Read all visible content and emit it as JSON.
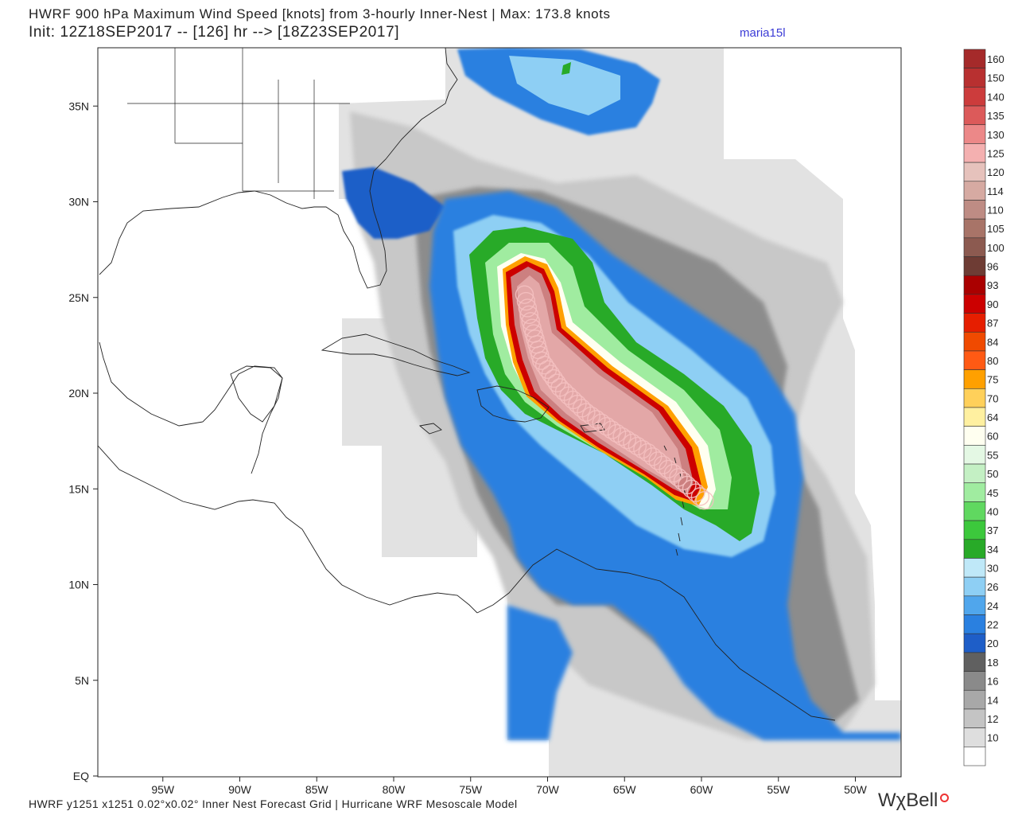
{
  "header": {
    "title_line1": "HWRF 900 hPa Maximum Wind Speed [knots] from 3-hourly Inner-Nest | Max: 173.8 knots",
    "title_line2": "Init: 12Z18SEP2017 -- [126] hr --> [18Z23SEP2017]",
    "storm_tag": "maria15l"
  },
  "footer": {
    "text": "HWRF y1251 x1251 0.02°x0.02° Inner Nest Forecast Grid | Hurricane WRF Mesoscale Model",
    "brand": "WχBell"
  },
  "map": {
    "lat_labels": [
      {
        "label": "35N",
        "lat": 35
      },
      {
        "label": "30N",
        "lat": 30
      },
      {
        "label": "25N",
        "lat": 25
      },
      {
        "label": "20N",
        "lat": 20
      },
      {
        "label": "15N",
        "lat": 15
      },
      {
        "label": "10N",
        "lat": 10
      },
      {
        "label": "5N",
        "lat": 5
      },
      {
        "label": "EQ",
        "lat": 0
      }
    ],
    "lon_labels": [
      {
        "label": "95W",
        "lon": -95
      },
      {
        "label": "90W",
        "lon": -90
      },
      {
        "label": "85W",
        "lon": -85
      },
      {
        "label": "80W",
        "lon": -80
      },
      {
        "label": "75W",
        "lon": -75
      },
      {
        "label": "70W",
        "lon": -70
      },
      {
        "label": "65W",
        "lon": -65
      },
      {
        "label": "60W",
        "lon": -60
      },
      {
        "label": "55W",
        "lon": -55
      },
      {
        "label": "50W",
        "lon": -50
      }
    ],
    "track": [
      {
        "lon": -59.8,
        "lat": 14.4
      },
      {
        "lon": -61.5,
        "lat": 15.6
      },
      {
        "lon": -63.5,
        "lat": 16.9
      },
      {
        "lon": -65.5,
        "lat": 17.9
      },
      {
        "lon": -67.5,
        "lat": 19.0
      },
      {
        "lon": -69.2,
        "lat": 20.3
      },
      {
        "lon": -70.4,
        "lat": 21.7
      },
      {
        "lon": -71.0,
        "lat": 23.4
      },
      {
        "lon": -71.6,
        "lat": 25.5
      }
    ]
  },
  "colorbar": {
    "levels": [
      {
        "value": "160",
        "color": "#a52a2a"
      },
      {
        "value": "150",
        "color": "#b83030"
      },
      {
        "value": "140",
        "color": "#cc3c3c"
      },
      {
        "value": "135",
        "color": "#dc5a5a"
      },
      {
        "value": "130",
        "color": "#ec8888"
      },
      {
        "value": "125",
        "color": "#f4b0b0"
      },
      {
        "value": "120",
        "color": "#e6c2bc"
      },
      {
        "value": "114",
        "color": "#d6aaa2"
      },
      {
        "value": "110",
        "color": "#be8c84"
      },
      {
        "value": "105",
        "color": "#a87468"
      },
      {
        "value": "100",
        "color": "#8c5a50"
      },
      {
        "value": "96",
        "color": "#6e3c34"
      },
      {
        "value": "93",
        "color": "#aa0000"
      },
      {
        "value": "90",
        "color": "#cc0000"
      },
      {
        "value": "87",
        "color": "#e61e00"
      },
      {
        "value": "84",
        "color": "#f04a00"
      },
      {
        "value": "80",
        "color": "#ff5a14"
      },
      {
        "value": "75",
        "color": "#ffa000"
      },
      {
        "value": "70",
        "color": "#ffd05a"
      },
      {
        "value": "64",
        "color": "#fff0a0"
      },
      {
        "value": "60",
        "color": "#fffff0"
      },
      {
        "value": "55",
        "color": "#e4f8e4"
      },
      {
        "value": "50",
        "color": "#c4f0c4"
      },
      {
        "value": "45",
        "color": "#a0eca0"
      },
      {
        "value": "40",
        "color": "#60d860"
      },
      {
        "value": "37",
        "color": "#3cc83c"
      },
      {
        "value": "34",
        "color": "#28aa28"
      },
      {
        "value": "30",
        "color": "#bfe8f8"
      },
      {
        "value": "26",
        "color": "#8ecff4"
      },
      {
        "value": "24",
        "color": "#50a6ec"
      },
      {
        "value": "22",
        "color": "#2a80e0"
      },
      {
        "value": "20",
        "color": "#1e5ec8"
      },
      {
        "value": "18",
        "color": "#606060"
      },
      {
        "value": "16",
        "color": "#8a8a8a"
      },
      {
        "value": "14",
        "color": "#a8a8a8"
      },
      {
        "value": "12",
        "color": "#c4c4c4"
      },
      {
        "value": "10",
        "color": "#dedede"
      },
      {
        "value": "",
        "color": "#ffffff"
      }
    ]
  }
}
